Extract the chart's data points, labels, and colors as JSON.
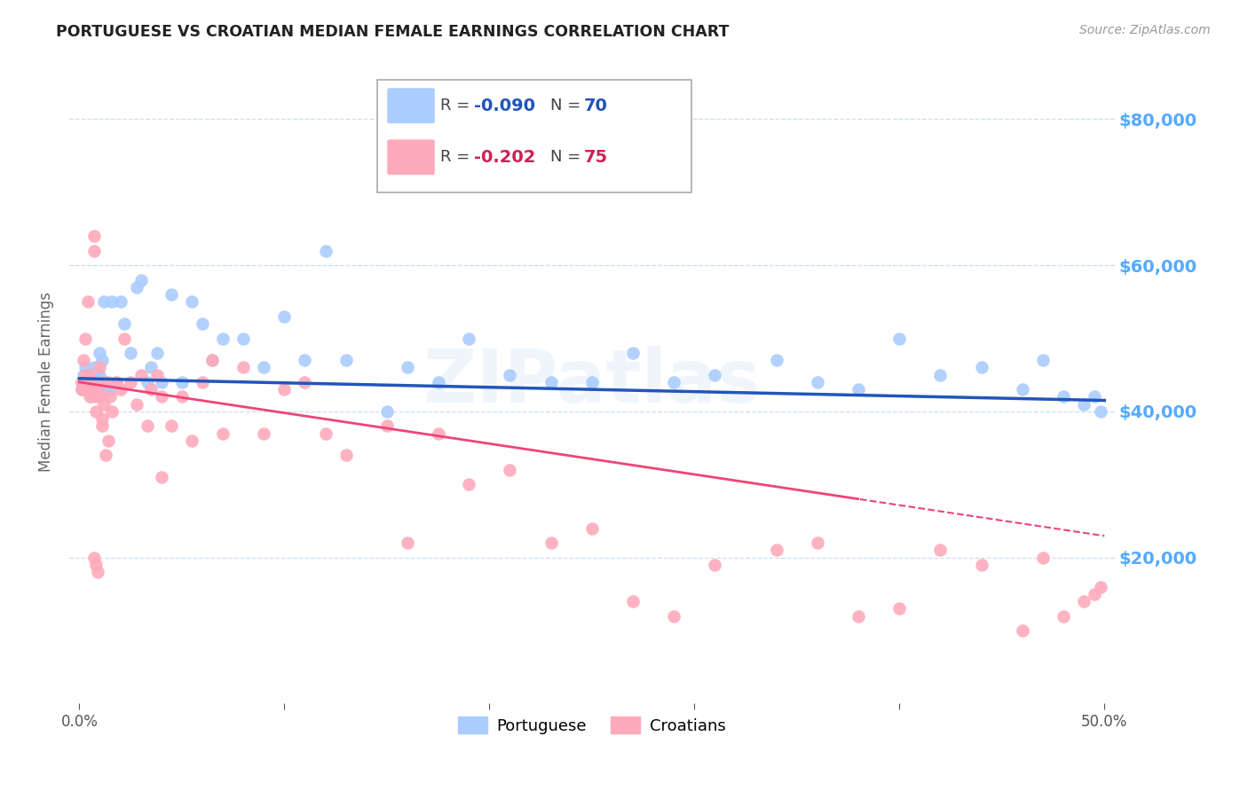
{
  "title": "PORTUGUESE VS CROATIAN MEDIAN FEMALE EARNINGS CORRELATION CHART",
  "source": "Source: ZipAtlas.com",
  "ylabel": "Median Female Earnings",
  "y_tick_labels": [
    "$20,000",
    "$40,000",
    "$60,000",
    "$80,000"
  ],
  "y_tick_values": [
    20000,
    40000,
    60000,
    80000
  ],
  "legend_label1": "Portuguese",
  "legend_label2": "Croatians",
  "legend_r1": "-0.090",
  "legend_n1": "70",
  "legend_r2": "-0.202",
  "legend_n2": "75",
  "title_color": "#222222",
  "source_color": "#999999",
  "ylabel_color": "#666666",
  "ytick_color": "#55aaff",
  "xtick_color": "#555555",
  "blue_color": "#aaccff",
  "pink_color": "#ffaabb",
  "blue_line_color": "#2255bb",
  "pink_line_color": "#ee4477",
  "watermark": "ZIPatlas",
  "blue_r": -0.09,
  "pink_r": -0.202,
  "blue_scatter_x": [
    0.001,
    0.001,
    0.002,
    0.002,
    0.003,
    0.003,
    0.004,
    0.004,
    0.005,
    0.005,
    0.006,
    0.006,
    0.007,
    0.007,
    0.008,
    0.008,
    0.009,
    0.01,
    0.01,
    0.011,
    0.011,
    0.012,
    0.013,
    0.014,
    0.015,
    0.016,
    0.018,
    0.02,
    0.022,
    0.025,
    0.028,
    0.03,
    0.033,
    0.035,
    0.038,
    0.04,
    0.045,
    0.05,
    0.055,
    0.06,
    0.065,
    0.07,
    0.08,
    0.09,
    0.1,
    0.11,
    0.12,
    0.13,
    0.15,
    0.16,
    0.175,
    0.19,
    0.21,
    0.23,
    0.25,
    0.27,
    0.29,
    0.31,
    0.34,
    0.36,
    0.38,
    0.4,
    0.42,
    0.44,
    0.46,
    0.47,
    0.48,
    0.49,
    0.495,
    0.498
  ],
  "blue_scatter_y": [
    44000,
    43000,
    45000,
    43000,
    46000,
    44000,
    43000,
    45000,
    44000,
    43000,
    45000,
    42000,
    44000,
    46000,
    43000,
    45000,
    44000,
    48000,
    45000,
    47000,
    44000,
    55000,
    43000,
    44000,
    43000,
    55000,
    44000,
    55000,
    52000,
    48000,
    57000,
    58000,
    44000,
    46000,
    48000,
    44000,
    56000,
    44000,
    55000,
    52000,
    47000,
    50000,
    50000,
    46000,
    53000,
    47000,
    62000,
    47000,
    40000,
    46000,
    44000,
    50000,
    45000,
    44000,
    44000,
    48000,
    44000,
    45000,
    47000,
    44000,
    43000,
    50000,
    45000,
    46000,
    43000,
    47000,
    42000,
    41000,
    42000,
    40000
  ],
  "pink_scatter_x": [
    0.001,
    0.001,
    0.002,
    0.002,
    0.003,
    0.003,
    0.004,
    0.004,
    0.005,
    0.005,
    0.006,
    0.006,
    0.007,
    0.007,
    0.008,
    0.008,
    0.009,
    0.01,
    0.01,
    0.011,
    0.011,
    0.012,
    0.013,
    0.014,
    0.015,
    0.016,
    0.018,
    0.02,
    0.022,
    0.025,
    0.028,
    0.03,
    0.033,
    0.035,
    0.038,
    0.04,
    0.045,
    0.05,
    0.055,
    0.06,
    0.065,
    0.07,
    0.08,
    0.09,
    0.1,
    0.11,
    0.12,
    0.13,
    0.15,
    0.16,
    0.175,
    0.19,
    0.21,
    0.23,
    0.25,
    0.27,
    0.29,
    0.31,
    0.34,
    0.36,
    0.38,
    0.4,
    0.42,
    0.44,
    0.46,
    0.47,
    0.48,
    0.49,
    0.495,
    0.498,
    0.007,
    0.008,
    0.009,
    0.013,
    0.04
  ],
  "pink_scatter_y": [
    44000,
    43000,
    47000,
    43000,
    45000,
    50000,
    55000,
    43000,
    45000,
    42000,
    44000,
    43000,
    62000,
    64000,
    42000,
    40000,
    43000,
    46000,
    42000,
    39000,
    38000,
    41000,
    44000,
    36000,
    42000,
    40000,
    44000,
    43000,
    50000,
    44000,
    41000,
    45000,
    38000,
    43000,
    45000,
    42000,
    38000,
    42000,
    36000,
    44000,
    47000,
    37000,
    46000,
    37000,
    43000,
    44000,
    37000,
    34000,
    38000,
    22000,
    37000,
    30000,
    32000,
    22000,
    24000,
    14000,
    12000,
    19000,
    21000,
    22000,
    12000,
    13000,
    21000,
    19000,
    10000,
    20000,
    12000,
    14000,
    15000,
    16000,
    20000,
    19000,
    18000,
    34000,
    31000
  ]
}
